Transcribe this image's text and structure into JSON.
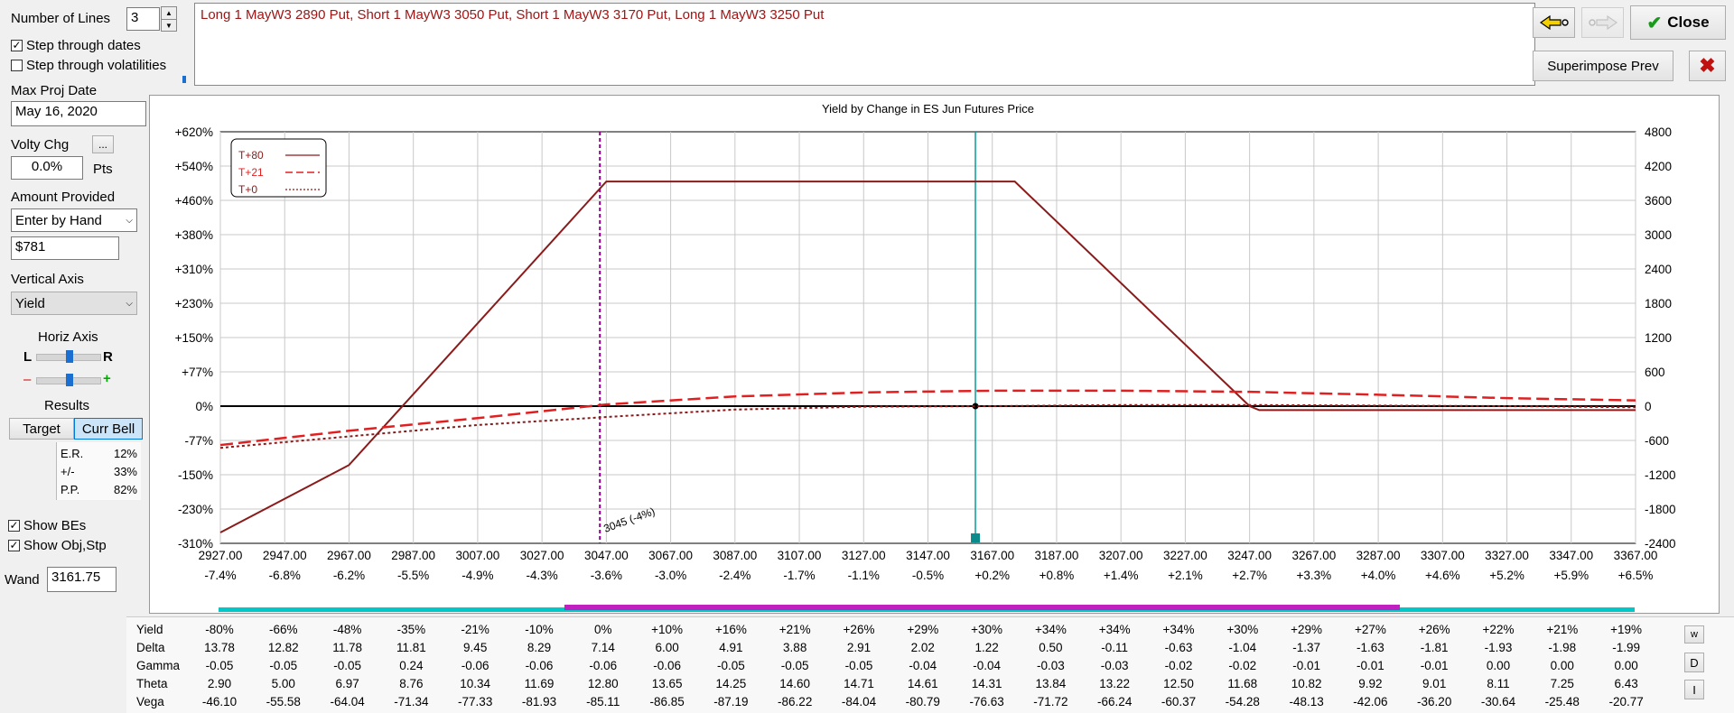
{
  "controls": {
    "num_lines_label": "Number of Lines",
    "num_lines_value": "3",
    "step_dates_label": "Step through dates",
    "step_dates_checked": true,
    "step_vols_label": "Step through volatilities",
    "step_vols_checked": false,
    "max_proj_label": "Max Proj Date",
    "max_proj_value": "May 16, 2020",
    "volty_label": "Volty Chg",
    "volty_btn": "...",
    "volty_value": "0.0%",
    "volty_unit": "Pts",
    "amount_label": "Amount Provided",
    "amount_mode": "Enter by Hand",
    "amount_value": "$781",
    "vaxis_label": "Vertical Axis",
    "vaxis_value": "Yield",
    "haxis_label": "Horiz Axis",
    "haxis_L": "L",
    "haxis_R": "R",
    "haxis_minus": "–",
    "haxis_plus": "+",
    "results_label": "Results",
    "target_btn": "Target",
    "currbell_btn": "Curr Bell",
    "er_label": "E.R.",
    "er_value": "12%",
    "pm_label": "+/-",
    "pm_value": "33%",
    "pp_label": "P.P.",
    "pp_value": "82%",
    "show_bes_label": "Show BEs",
    "show_bes_checked": true,
    "show_obj_label": "Show Obj,Stp",
    "show_obj_checked": true,
    "wand_label": "Wand",
    "wand_value": "3161.75"
  },
  "position_text": "Long 1 MayW3 2890 Put, Short 1 MayW3 3050 Put, Short 1 MayW3 3170 Put, Long 1 MayW3 3250 Put",
  "toolbar": {
    "back_icon": "arrow-left-icon",
    "fwd_icon": "arrow-right-icon",
    "close_label": "Close",
    "superimpose_label": "Superimpose Prev",
    "delete_icon": "red-x-icon"
  },
  "chart_data": {
    "type": "line",
    "title": "Yield by Change in ES Jun Futures Price",
    "x_ticks": [
      "2927.00",
      "2947.00",
      "2967.00",
      "2987.00",
      "3007.00",
      "3027.00",
      "3047.00",
      "3067.00",
      "3087.00",
      "3107.00",
      "3127.00",
      "3147.00",
      "3167.00",
      "3187.00",
      "3207.00",
      "3227.00",
      "3247.00",
      "3267.00",
      "3287.00",
      "3307.00",
      "3327.00",
      "3347.00",
      "3367.00"
    ],
    "x_pct_ticks": [
      "-7.4%",
      "-6.8%",
      "-6.2%",
      "-5.5%",
      "-4.9%",
      "-4.3%",
      "-3.6%",
      "-3.0%",
      "-2.4%",
      "-1.7%",
      "-1.1%",
      "-0.5%",
      "+0.2%",
      "+0.8%",
      "+1.4%",
      "+2.1%",
      "+2.7%",
      "+3.3%",
      "+4.0%",
      "+4.6%",
      "+5.2%",
      "+5.9%",
      "+6.5%"
    ],
    "y_left_ticks": [
      "+620%",
      "+540%",
      "+460%",
      "+380%",
      "+310%",
      "+230%",
      "+150%",
      "+77%",
      "0%",
      "-77%",
      "-150%",
      "-230%",
      "-310%"
    ],
    "y_right_ticks": [
      "4800",
      "4200",
      "3600",
      "3000",
      "2400",
      "1800",
      "1200",
      "600",
      "0",
      "-600",
      "-1200",
      "-1800",
      "-2400"
    ],
    "xlim": [
      2927,
      3367
    ],
    "ylim": [
      -2400,
      4800
    ],
    "legend": [
      "T+80",
      "T+21",
      "T+0"
    ],
    "legend_position": "top-left",
    "series": [
      {
        "name": "T+80",
        "style": "solid",
        "color": "#8b1a1a",
        "x": [
          2927,
          2967,
          3047,
          3051,
          3170,
          3174,
          3247,
          3250,
          3367
        ],
        "y": [
          -2210,
          -1030,
          3930,
          3930,
          3930,
          3930,
          0,
          -70,
          -70
        ]
      },
      {
        "name": "T+21",
        "style": "dashed",
        "color": "#e02020",
        "x": [
          2927,
          2967,
          3007,
          3047,
          3087,
          3127,
          3167,
          3207,
          3247,
          3287,
          3327,
          3367
        ],
        "y": [
          -680,
          -430,
          -210,
          30,
          170,
          240,
          270,
          270,
          250,
          200,
          140,
          100
        ]
      },
      {
        "name": "T+0",
        "style": "dotted",
        "color": "#8b1a1a",
        "x": [
          2927,
          2967,
          3007,
          3047,
          3087,
          3127,
          3167,
          3207,
          3247,
          3287,
          3327,
          3367
        ],
        "y": [
          -730,
          -530,
          -330,
          -190,
          -60,
          -10,
          0,
          20,
          20,
          10,
          0,
          -20
        ]
      }
    ],
    "markers": {
      "breakeven_x": 3045,
      "breakeven_label": "3045 (-4%)",
      "wand_x": 3161.75
    },
    "grid": true
  },
  "greeks": {
    "rows": [
      {
        "label": "Yield",
        "values": [
          "-80%",
          "-66%",
          "-48%",
          "-35%",
          "-21%",
          "-10%",
          "0%",
          "+10%",
          "+16%",
          "+21%",
          "+26%",
          "+29%",
          "+30%",
          "+34%",
          "+34%",
          "+34%",
          "+30%",
          "+29%",
          "+27%",
          "+26%",
          "+22%",
          "+21%",
          "+19%"
        ]
      },
      {
        "label": "Delta",
        "values": [
          "13.78",
          "12.82",
          "11.78",
          "11.81",
          "9.45",
          "8.29",
          "7.14",
          "6.00",
          "4.91",
          "3.88",
          "2.91",
          "2.02",
          "1.22",
          "0.50",
          "-0.11",
          "-0.63",
          "-1.04",
          "-1.37",
          "-1.63",
          "-1.81",
          "-1.93",
          "-1.98",
          "-1.99"
        ]
      },
      {
        "label": "Gamma",
        "values": [
          "-0.05",
          "-0.05",
          "-0.05",
          "0.24",
          "-0.06",
          "-0.06",
          "-0.06",
          "-0.06",
          "-0.05",
          "-0.05",
          "-0.05",
          "-0.04",
          "-0.04",
          "-0.03",
          "-0.03",
          "-0.02",
          "-0.02",
          "-0.01",
          "-0.01",
          "-0.01",
          "0.00",
          "0.00",
          "0.00"
        ]
      },
      {
        "label": "Theta",
        "values": [
          "2.90",
          "5.00",
          "6.97",
          "8.76",
          "10.34",
          "11.69",
          "12.80",
          "13.65",
          "14.25",
          "14.60",
          "14.71",
          "14.61",
          "14.31",
          "13.84",
          "13.22",
          "12.50",
          "11.68",
          "10.82",
          "9.92",
          "9.01",
          "8.11",
          "7.25",
          "6.43"
        ]
      },
      {
        "label": "Vega",
        "values": [
          "-46.10",
          "-55.58",
          "-64.04",
          "-71.34",
          "-77.33",
          "-81.93",
          "-85.11",
          "-86.85",
          "-87.19",
          "-86.22",
          "-84.04",
          "-80.79",
          "-76.63",
          "-71.72",
          "-66.24",
          "-60.37",
          "-54.28",
          "-48.13",
          "-42.06",
          "-36.20",
          "-30.64",
          "-25.48",
          "-20.77"
        ]
      }
    ],
    "side_btn_w": "w",
    "side_btn_d": "D",
    "side_btn_i": "I"
  },
  "colors": {
    "accent_cyan": "#00c8c8",
    "accent_magenta": "#c020c0",
    "dark_red": "#8b1a1a",
    "red": "#e02020"
  }
}
